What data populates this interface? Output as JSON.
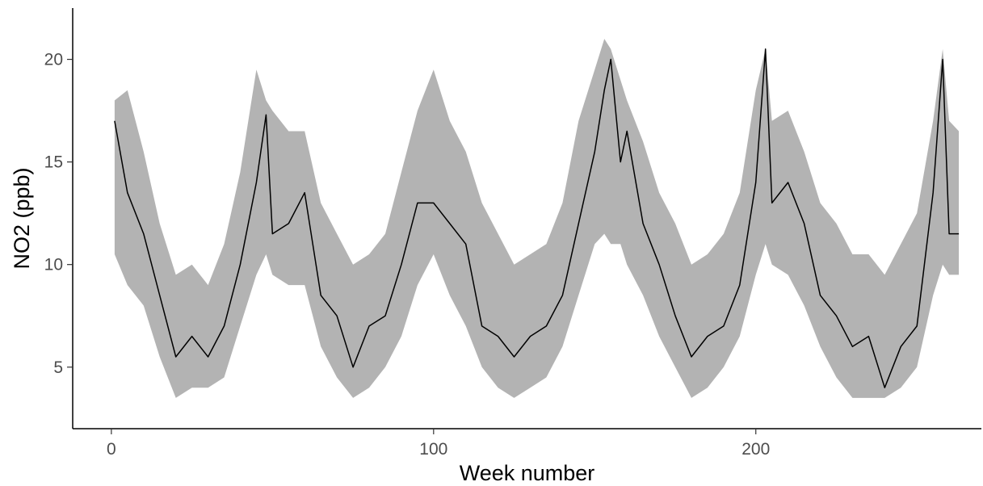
{
  "chart_data": {
    "type": "line",
    "title": "",
    "xlabel": "Week number",
    "ylabel": "NO2 (ppb)",
    "xlim": [
      -12,
      270
    ],
    "ylim": [
      2,
      22.5
    ],
    "x_ticks": [
      0,
      100,
      200
    ],
    "y_ticks": [
      5,
      10,
      15,
      20
    ],
    "grid": false,
    "legend": "none",
    "colors": {
      "line": "#000000",
      "band": "#b3b3b3",
      "axis": "#000000"
    },
    "series": [
      {
        "x": [
          1,
          5,
          10,
          15,
          20,
          25,
          30,
          35,
          40,
          45,
          48,
          50,
          55,
          60,
          65,
          70,
          75,
          80,
          85,
          90,
          95,
          100,
          105,
          110,
          115,
          120,
          125,
          130,
          135,
          140,
          145,
          150,
          153,
          155,
          158,
          160,
          165,
          170,
          175,
          180,
          185,
          190,
          195,
          200,
          203,
          205,
          210,
          215,
          220,
          225,
          230,
          235,
          240,
          245,
          250,
          255,
          258,
          260,
          263
        ],
        "values": [
          17,
          13.5,
          11.5,
          8.5,
          5.5,
          6.5,
          5.5,
          7,
          10,
          14,
          17.3,
          11.5,
          12,
          13.5,
          8.5,
          7.5,
          5,
          7,
          7.5,
          10,
          13,
          13,
          12,
          11,
          7,
          6.5,
          5.5,
          6.5,
          7,
          8.5,
          12,
          15.5,
          18.5,
          20,
          15,
          16.5,
          12,
          10,
          7.5,
          5.5,
          6.5,
          7,
          9,
          14,
          20.5,
          13,
          14,
          12,
          8.5,
          7.5,
          6,
          6.5,
          4,
          6,
          7,
          13.5,
          20,
          11.5,
          11.5
        ],
        "lower": [
          10.5,
          9,
          8,
          5.5,
          3.5,
          4,
          4,
          4.5,
          7,
          9.5,
          10.5,
          9.5,
          9,
          9,
          6,
          4.5,
          3.5,
          4,
          5,
          6.5,
          9,
          10.5,
          8.5,
          7,
          5,
          4,
          3.5,
          4,
          4.5,
          6,
          8.5,
          11,
          11.5,
          11,
          11,
          10,
          8.5,
          6.5,
          5,
          3.5,
          4,
          5,
          6.5,
          9.5,
          11,
          10,
          9.5,
          8,
          6,
          4.5,
          3.5,
          3.5,
          3.5,
          4,
          5,
          8.5,
          10,
          9.5,
          9.5
        ],
        "upper": [
          18,
          18.5,
          15.5,
          12,
          9.5,
          10,
          9,
          11,
          14.5,
          19.5,
          18,
          17.5,
          16.5,
          16.5,
          13,
          11.5,
          10,
          10.5,
          11.5,
          14.5,
          17.5,
          19.5,
          17,
          15.5,
          13,
          11.5,
          10,
          10.5,
          11,
          13,
          17,
          19.5,
          21,
          20.5,
          19,
          18,
          16,
          13.5,
          12,
          10,
          10.5,
          11.5,
          13.5,
          18.5,
          20.5,
          17,
          17.5,
          15.5,
          13,
          12,
          10.5,
          10.5,
          9.5,
          11,
          12.5,
          17,
          20.5,
          17,
          16.5
        ]
      }
    ]
  }
}
